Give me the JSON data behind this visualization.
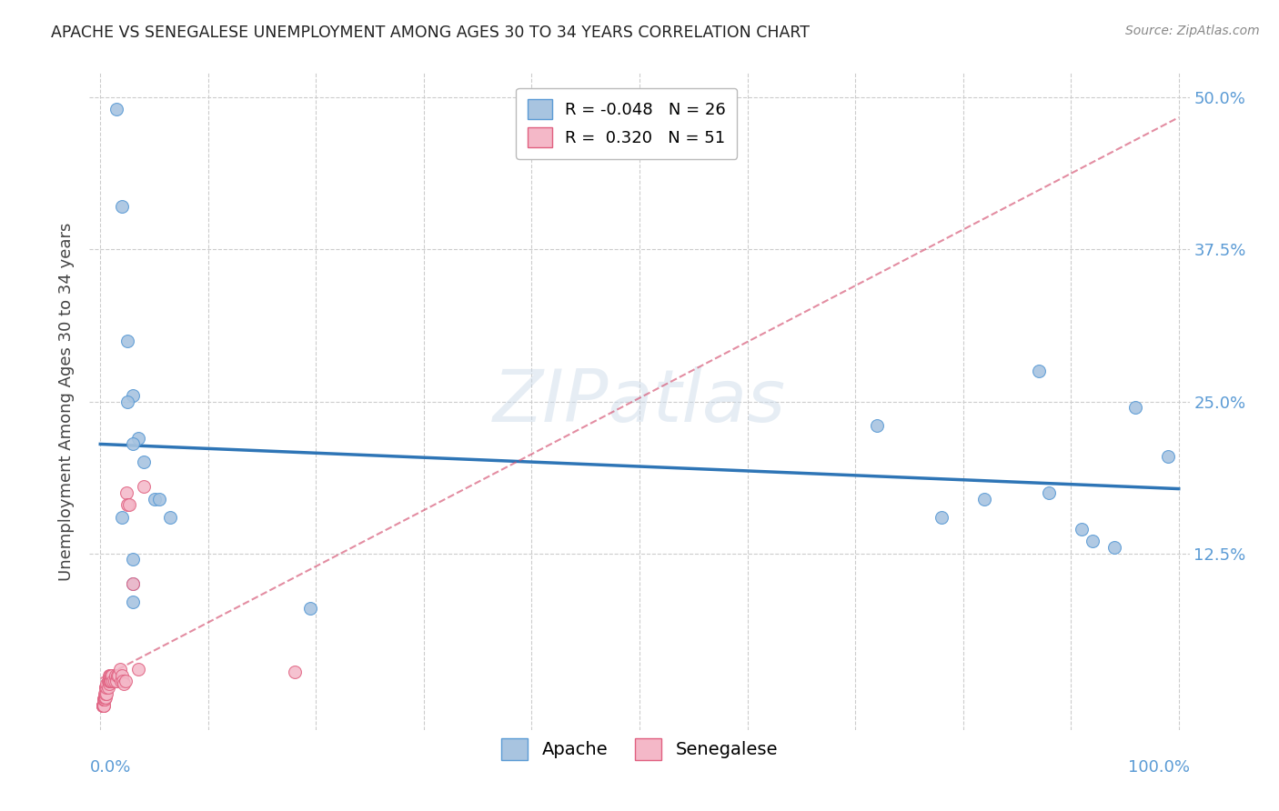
{
  "title": "APACHE VS SENEGALESE UNEMPLOYMENT AMONG AGES 30 TO 34 YEARS CORRELATION CHART",
  "source": "Source: ZipAtlas.com",
  "ylabel": "Unemployment Among Ages 30 to 34 years",
  "ytick_labels": [
    "12.5%",
    "25.0%",
    "37.5%",
    "50.0%"
  ],
  "ytick_values": [
    0.125,
    0.25,
    0.375,
    0.5
  ],
  "xtick_values": [
    0.0,
    0.1,
    0.2,
    0.3,
    0.4,
    0.5,
    0.6,
    0.7,
    0.8,
    0.9,
    1.0
  ],
  "xlim": [
    -0.01,
    1.01
  ],
  "ylim": [
    -0.02,
    0.52
  ],
  "apache_color": "#a8c4e0",
  "apache_edge_color": "#5b9bd5",
  "senegalese_color": "#f4b8c8",
  "senegalese_edge_color": "#e06080",
  "trendline_apache_color": "#2e75b6",
  "trendline_senegalese_color": "#d45070",
  "legend_apache_R": "-0.048",
  "legend_apache_N": "26",
  "legend_senegalese_R": "0.320",
  "legend_senegalese_N": "51",
  "apache_x": [
    0.015,
    0.02,
    0.025,
    0.03,
    0.035,
    0.04,
    0.05,
    0.055,
    0.065,
    0.025,
    0.03,
    0.02,
    0.03,
    0.03,
    0.195,
    0.03,
    0.72,
    0.78,
    0.82,
    0.87,
    0.88,
    0.91,
    0.92,
    0.94,
    0.96,
    0.99
  ],
  "apache_y": [
    0.49,
    0.41,
    0.3,
    0.255,
    0.22,
    0.2,
    0.17,
    0.17,
    0.155,
    0.25,
    0.215,
    0.155,
    0.12,
    0.1,
    0.08,
    0.085,
    0.23,
    0.155,
    0.17,
    0.275,
    0.175,
    0.145,
    0.135,
    0.13,
    0.245,
    0.205
  ],
  "senegalese_x": [
    0.002,
    0.002,
    0.002,
    0.002,
    0.002,
    0.003,
    0.003,
    0.003,
    0.003,
    0.003,
    0.004,
    0.004,
    0.004,
    0.004,
    0.005,
    0.005,
    0.005,
    0.005,
    0.006,
    0.006,
    0.006,
    0.007,
    0.007,
    0.008,
    0.008,
    0.008,
    0.009,
    0.009,
    0.01,
    0.01,
    0.01,
    0.011,
    0.012,
    0.013,
    0.014,
    0.015,
    0.016,
    0.017,
    0.018,
    0.019,
    0.02,
    0.021,
    0.022,
    0.023,
    0.024,
    0.025,
    0.027,
    0.03,
    0.035,
    0.04,
    0.18
  ],
  "senegalese_y": [
    0.0,
    0.0,
    0.0,
    0.0,
    0.0,
    0.0,
    0.0,
    0.005,
    0.005,
    0.005,
    0.005,
    0.007,
    0.007,
    0.01,
    0.007,
    0.01,
    0.015,
    0.015,
    0.01,
    0.015,
    0.018,
    0.015,
    0.02,
    0.018,
    0.02,
    0.025,
    0.02,
    0.025,
    0.02,
    0.025,
    0.02,
    0.025,
    0.02,
    0.02,
    0.025,
    0.02,
    0.025,
    0.025,
    0.03,
    0.02,
    0.025,
    0.02,
    0.018,
    0.02,
    0.175,
    0.165,
    0.165,
    0.1,
    0.03,
    0.18,
    0.028
  ],
  "marker_size": 100,
  "background_color": "#ffffff",
  "grid_color": "#cccccc",
  "tick_color": "#5b9bd5",
  "watermark_text": "ZIPatlas"
}
